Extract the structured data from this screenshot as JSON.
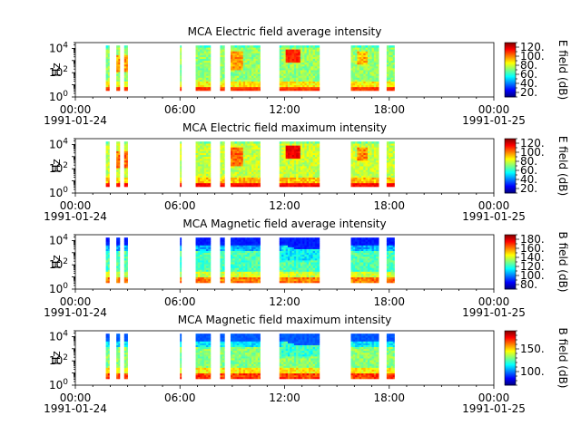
{
  "chart_data": [
    {
      "type": "heatmap",
      "title": "MCA  Electric field average intensity",
      "ylabel": "Hz",
      "yscale": "log",
      "ylim": [
        1,
        30000
      ],
      "y_ticks": [
        {
          "base": "10",
          "exp": "0"
        },
        {
          "base": "10",
          "exp": "2"
        },
        {
          "base": "10",
          "exp": "4"
        }
      ],
      "x_ticks": [
        "00:00",
        "06:00",
        "12:00",
        "18:00",
        "00:00"
      ],
      "x_dates": [
        "1991-01-24",
        "1991-01-25"
      ],
      "colorbar": {
        "label": "E field (dB)",
        "min": 10,
        "max": 130,
        "ticks": [
          "20.",
          "40.",
          "60.",
          "80.",
          "100.",
          "120."
        ],
        "tick_values": [
          20,
          40,
          60,
          80,
          100,
          120
        ],
        "cmap": "jet"
      },
      "mode": "e_avg"
    },
    {
      "type": "heatmap",
      "title": "MCA  Electric field maximum intensity",
      "ylabel": "Hz",
      "yscale": "log",
      "ylim": [
        1,
        30000
      ],
      "y_ticks": [
        {
          "base": "10",
          "exp": "0"
        },
        {
          "base": "10",
          "exp": "2"
        },
        {
          "base": "10",
          "exp": "4"
        }
      ],
      "x_ticks": [
        "00:00",
        "06:00",
        "12:00",
        "18:00",
        "00:00"
      ],
      "x_dates": [
        "1991-01-24",
        "1991-01-25"
      ],
      "colorbar": {
        "label": "E field (dB)",
        "min": 10,
        "max": 130,
        "ticks": [
          "20.",
          "40.",
          "60.",
          "80.",
          "100.",
          "120."
        ],
        "tick_values": [
          20,
          40,
          60,
          80,
          100,
          120
        ],
        "cmap": "jet"
      },
      "mode": "e_max"
    },
    {
      "type": "heatmap",
      "title": "MCA  Magnetic field average intensity",
      "ylabel": "Hz",
      "yscale": "log",
      "ylim": [
        1,
        30000
      ],
      "y_ticks": [
        {
          "base": "10",
          "exp": "0"
        },
        {
          "base": "10",
          "exp": "2"
        },
        {
          "base": "10",
          "exp": "4"
        }
      ],
      "x_ticks": [
        "00:00",
        "06:00",
        "12:00",
        "18:00",
        "00:00"
      ],
      "x_dates": [
        "1991-01-24",
        "1991-01-25"
      ],
      "colorbar": {
        "label": "B field (dB)",
        "min": 70,
        "max": 190,
        "ticks": [
          "80.",
          "100.",
          "120.",
          "140.",
          "160.",
          "180."
        ],
        "tick_values": [
          80,
          100,
          120,
          140,
          160,
          180
        ],
        "cmap": "jet"
      },
      "mode": "b_avg"
    },
    {
      "type": "heatmap",
      "title": "MCA  Magnetic field maximum intensity",
      "ylabel": "Hz",
      "yscale": "log",
      "ylim": [
        1,
        30000
      ],
      "y_ticks": [
        {
          "base": "10",
          "exp": "0"
        },
        {
          "base": "10",
          "exp": "2"
        },
        {
          "base": "10",
          "exp": "4"
        }
      ],
      "x_ticks": [
        "00:00",
        "06:00",
        "12:00",
        "18:00",
        "00:00"
      ],
      "x_dates": [
        "1991-01-24",
        "1991-01-25"
      ],
      "colorbar": {
        "label": "B field (dB)",
        "min": 70,
        "max": 190,
        "ticks": [
          "100.",
          "150."
        ],
        "tick_values": [
          100,
          150
        ],
        "cmap": "jet"
      },
      "mode": "b_max"
    }
  ],
  "data_segments_hours": [
    [
      1.75,
      1.95
    ],
    [
      2.35,
      2.55
    ],
    [
      2.8,
      3.0
    ],
    [
      6.0,
      6.08
    ],
    [
      6.9,
      7.75
    ],
    [
      8.3,
      8.55
    ],
    [
      8.9,
      10.6
    ],
    [
      11.7,
      14.0
    ],
    [
      15.8,
      17.4
    ],
    [
      17.85,
      18.3
    ]
  ]
}
